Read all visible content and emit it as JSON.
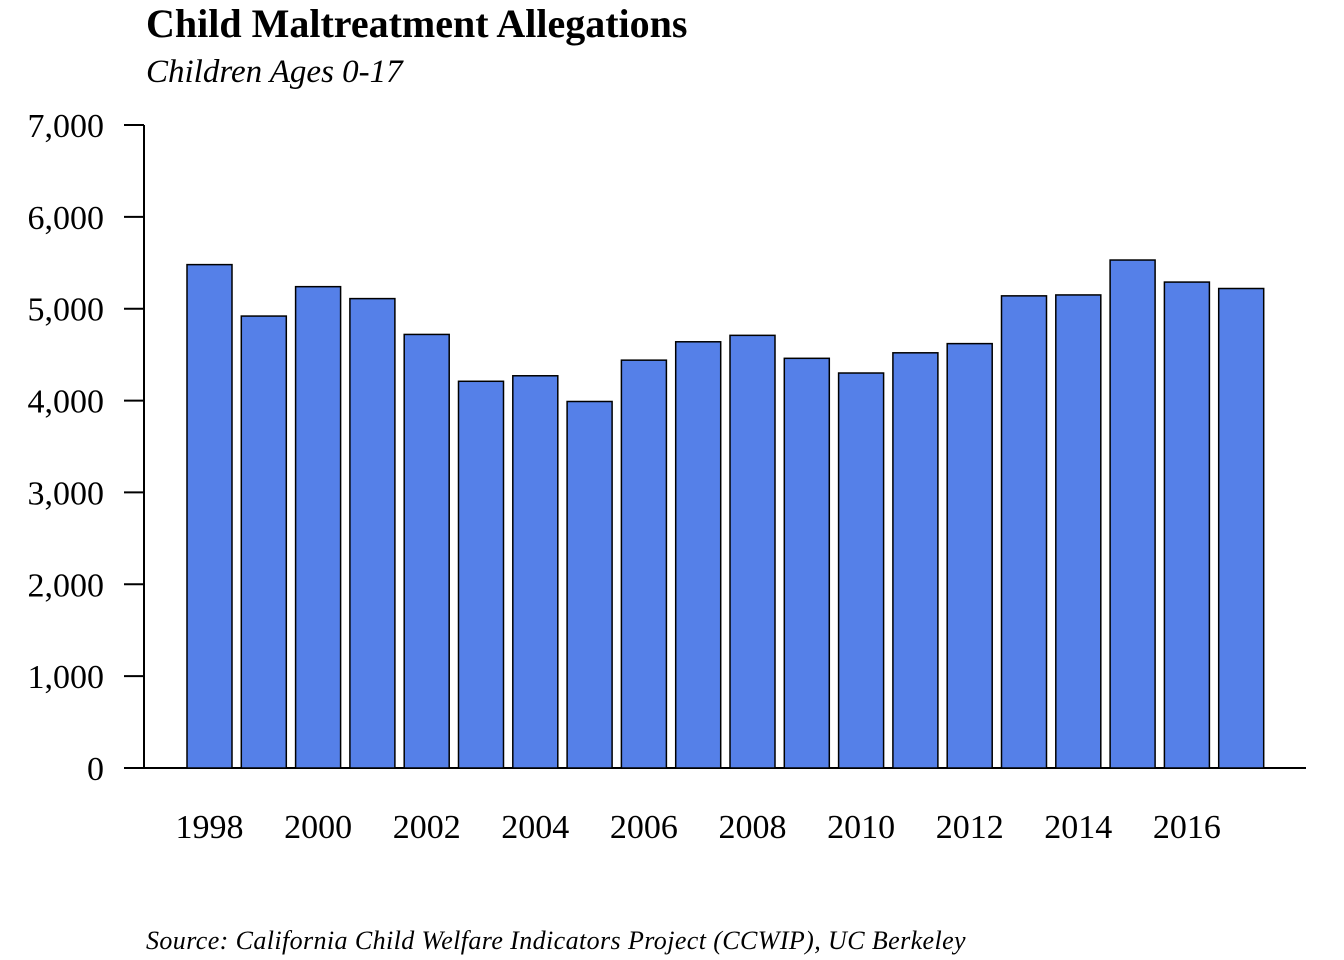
{
  "title": "Child Maltreatment Allegations",
  "subtitle": "Children Ages 0-17",
  "source": "Source: California Child Welfare Indicators Project (CCWIP), UC Berkeley",
  "chart_data": {
    "type": "bar",
    "title": "Child Maltreatment Allegations",
    "subtitle": "Children Ages 0-17",
    "xlabel": "",
    "ylabel": "",
    "categories": [
      "1998",
      "1999",
      "2000",
      "2001",
      "2002",
      "2003",
      "2004",
      "2005",
      "2006",
      "2007",
      "2008",
      "2009",
      "2010",
      "2011",
      "2012",
      "2013",
      "2014",
      "2015",
      "2016",
      "2017"
    ],
    "values": [
      5480,
      4920,
      5240,
      5110,
      4720,
      4210,
      4270,
      3990,
      4440,
      4640,
      4710,
      4460,
      4300,
      4520,
      4620,
      5140,
      5150,
      5530,
      5290,
      5220
    ],
    "x_tick_labels": [
      "1998",
      "2000",
      "2002",
      "2004",
      "2006",
      "2008",
      "2010",
      "2012",
      "2014",
      "2016"
    ],
    "y_ticks": [
      0,
      1000,
      2000,
      3000,
      4000,
      5000,
      6000,
      7000
    ],
    "y_tick_labels": [
      "0",
      "1,000",
      "2,000",
      "3,000",
      "4,000",
      "5,000",
      "6,000",
      "7,000"
    ],
    "ylim": [
      0,
      7000
    ],
    "grid": false,
    "legend": "none",
    "bar_color": "#5580E8",
    "bar_edge_color": "#000000"
  }
}
